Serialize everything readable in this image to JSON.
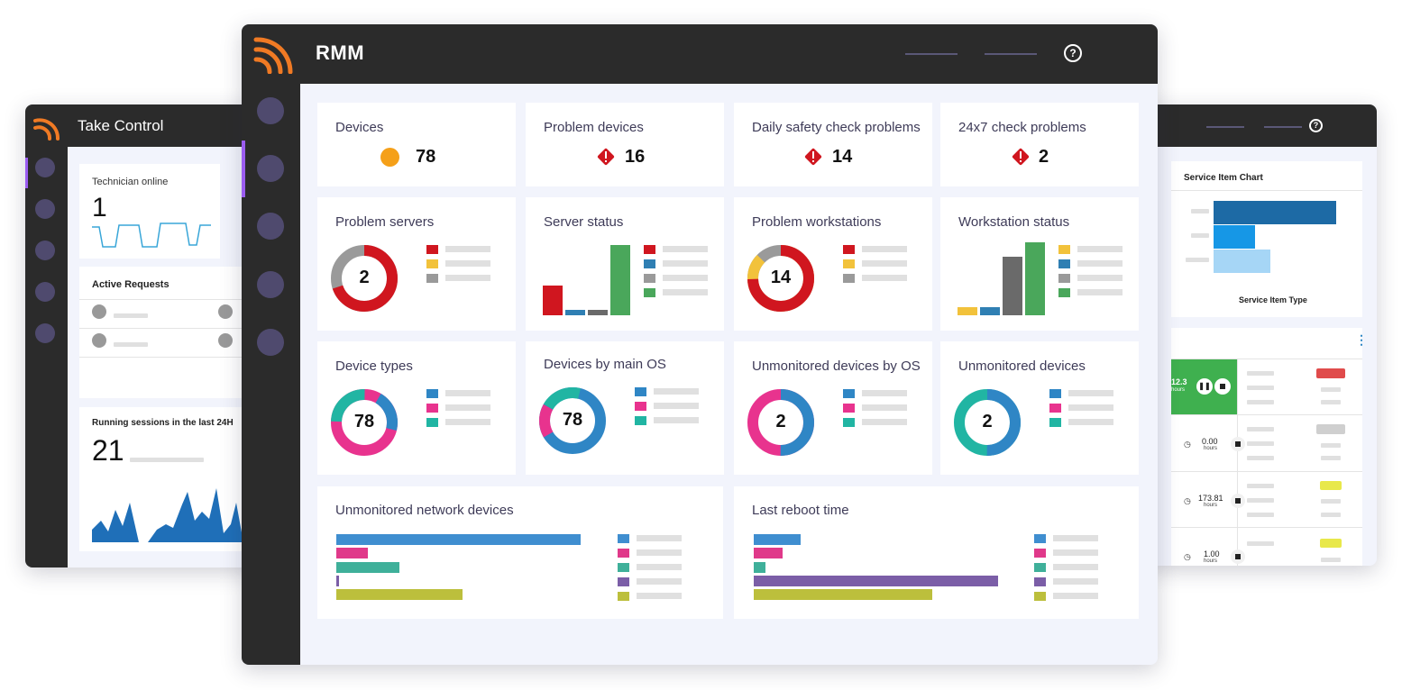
{
  "take_control": {
    "title": "Take Control",
    "technician_online": {
      "label": "Technician online",
      "value": "1"
    },
    "active_requests": {
      "label": "Active Requests"
    },
    "running_sessions": {
      "label": "Running sessions in the last 24H",
      "value": "21"
    }
  },
  "right_panel": {
    "service_chart": {
      "title": "Service Item Chart",
      "xlabel": "Service Item Type"
    },
    "timers": [
      {
        "value": "12.3",
        "unit": "hours",
        "state": "running"
      },
      {
        "value": "0.00",
        "unit": "hours"
      },
      {
        "value": "173.81",
        "unit": "hours"
      },
      {
        "value": "1.00",
        "unit": "hours"
      }
    ]
  },
  "rmm": {
    "app_title": "RMM",
    "help_icon": "?",
    "stats": [
      {
        "label": "Devices",
        "value": "78",
        "icon": "status-dot-icon"
      },
      {
        "label": "Problem devices",
        "value": "16",
        "icon": "warning-icon"
      },
      {
        "label": "Daily safety check problems",
        "value": "14",
        "icon": "warning-icon"
      },
      {
        "label": "24x7 check problems",
        "value": "2",
        "icon": "warning-icon"
      }
    ],
    "widgets": {
      "problem_servers": {
        "label": "Problem servers",
        "value": "2"
      },
      "server_status": {
        "label": "Server status"
      },
      "problem_workstations": {
        "label": "Problem workstations",
        "value": "14"
      },
      "workstation_status": {
        "label": "Workstation status"
      },
      "device_types": {
        "label": "Device types",
        "value": "78"
      },
      "devices_by_os": {
        "label": "Devices by main OS",
        "value": "78"
      },
      "unmonitored_by_os": {
        "label": "Unmonitored devices by OS",
        "value": "2"
      },
      "unmonitored_devices": {
        "label": "Unmonitored devices",
        "value": "2"
      },
      "unmonitored_network": {
        "label": "Unmonitored network devices"
      },
      "last_reboot": {
        "label": "Last reboot time"
      }
    }
  },
  "colors": {
    "red": "#d0161f",
    "yellow": "#f2c23b",
    "gray": "#8c8c8c",
    "blue": "#2f86c5",
    "green": "#4aa75b",
    "pink": "#e8338e",
    "teal": "#21b5a3",
    "purple": "#7b5ea7",
    "olive": "#bcbf3c",
    "orange": "#f5a019",
    "accent": "#f07a24"
  }
}
